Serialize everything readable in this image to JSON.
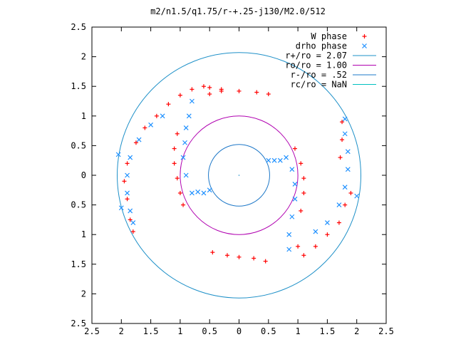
{
  "chart_data": {
    "type": "scatter",
    "title": "m2/n1.5/q1.75/r-+.25-j130/M2.0/512",
    "xlabel": "",
    "ylabel": "",
    "xlim": [
      -2.5,
      2.5
    ],
    "ylim": [
      -2.5,
      2.5
    ],
    "x_tick_labels": [
      "2.5",
      "2",
      "1.5",
      "1",
      "0.5",
      "0",
      "0.5",
      "1",
      "1.5",
      "2",
      "2.5"
    ],
    "y_tick_labels": [
      "2.5",
      "2",
      "1.5",
      "1",
      "0.5",
      "0",
      "0.5",
      "1",
      "1.5",
      "2",
      "2.5"
    ],
    "grid": false,
    "legend_position": "top-right",
    "colors": {
      "w_phase": "#ff0000",
      "drho_phase": "#1e90ff",
      "r_plus": "#1e90c8",
      "r_o": "#b000b0",
      "r_minus": "#1e78c8",
      "r_c": "#00c0c0"
    },
    "circles": [
      {
        "name": "r+/ro = 2.07",
        "radius": 2.07
      },
      {
        "name": "ro/ro = 1.00",
        "radius": 1.0
      },
      {
        "name": "r-/ro = .52",
        "radius": 0.52
      },
      {
        "name": "rc/ro = NaN",
        "radius": null
      }
    ],
    "series": [
      {
        "name": "W phase",
        "marker": "plus",
        "points": [
          [
            0.5,
            1.37
          ],
          [
            0.3,
            1.4
          ],
          [
            0.0,
            1.42
          ],
          [
            -0.3,
            1.45
          ],
          [
            -0.5,
            1.48
          ],
          [
            -0.6,
            1.5
          ],
          [
            -0.8,
            1.45
          ],
          [
            -1.0,
            1.35
          ],
          [
            -1.2,
            1.2
          ],
          [
            -1.4,
            1.0
          ],
          [
            -1.6,
            0.8
          ],
          [
            -1.75,
            0.55
          ],
          [
            -1.9,
            0.2
          ],
          [
            -1.95,
            -0.1
          ],
          [
            -1.9,
            -0.4
          ],
          [
            -1.85,
            -0.75
          ],
          [
            -1.8,
            -0.95
          ],
          [
            -0.95,
            -0.5
          ],
          [
            -1.0,
            -0.3
          ],
          [
            -1.05,
            -0.05
          ],
          [
            -1.1,
            0.2
          ],
          [
            -1.1,
            0.45
          ],
          [
            -1.05,
            0.7
          ],
          [
            -0.5,
            1.37
          ],
          [
            -0.3,
            1.42
          ],
          [
            -0.45,
            -1.3
          ],
          [
            -0.2,
            -1.35
          ],
          [
            0.0,
            -1.38
          ],
          [
            0.25,
            -1.4
          ],
          [
            0.45,
            -1.45
          ],
          [
            1.9,
            -0.3
          ],
          [
            1.8,
            -0.5
          ],
          [
            1.7,
            -0.8
          ],
          [
            1.5,
            -1.0
          ],
          [
            1.3,
            -1.2
          ],
          [
            1.1,
            -1.35
          ],
          [
            1.0,
            -1.2
          ],
          [
            1.75,
            0.9
          ],
          [
            1.75,
            0.6
          ],
          [
            1.72,
            0.3
          ],
          [
            0.95,
            0.45
          ],
          [
            1.05,
            0.2
          ],
          [
            1.1,
            -0.05
          ],
          [
            1.1,
            -0.3
          ],
          [
            1.05,
            -0.6
          ]
        ]
      },
      {
        "name": "drho phase",
        "marker": "cross",
        "points": [
          [
            -0.5,
            -0.25
          ],
          [
            -0.6,
            -0.3
          ],
          [
            -0.7,
            -0.28
          ],
          [
            -0.8,
            -0.3
          ],
          [
            -0.9,
            0.0
          ],
          [
            -0.95,
            0.3
          ],
          [
            -0.92,
            0.55
          ],
          [
            -0.9,
            0.8
          ],
          [
            -0.85,
            1.0
          ],
          [
            -0.8,
            1.25
          ],
          [
            -1.3,
            1.0
          ],
          [
            -1.5,
            0.85
          ],
          [
            -1.7,
            0.6
          ],
          [
            -1.85,
            0.3
          ],
          [
            -1.9,
            0.0
          ],
          [
            -1.9,
            -0.3
          ],
          [
            -1.85,
            -0.6
          ],
          [
            -1.8,
            -0.8
          ],
          [
            -2.05,
            0.35
          ],
          [
            -2.0,
            -0.55
          ],
          [
            0.5,
            0.25
          ],
          [
            0.6,
            0.25
          ],
          [
            0.7,
            0.25
          ],
          [
            0.8,
            0.3
          ],
          [
            0.9,
            0.1
          ],
          [
            0.95,
            -0.15
          ],
          [
            0.95,
            -0.4
          ],
          [
            0.9,
            -0.7
          ],
          [
            0.85,
            -1.0
          ],
          [
            0.85,
            -1.25
          ],
          [
            1.3,
            -0.95
          ],
          [
            1.5,
            -0.8
          ],
          [
            1.7,
            -0.5
          ],
          [
            1.8,
            -0.2
          ],
          [
            1.85,
            0.1
          ],
          [
            1.85,
            0.4
          ],
          [
            1.8,
            0.7
          ],
          [
            1.8,
            0.95
          ],
          [
            2.0,
            -0.35
          ]
        ]
      }
    ]
  }
}
